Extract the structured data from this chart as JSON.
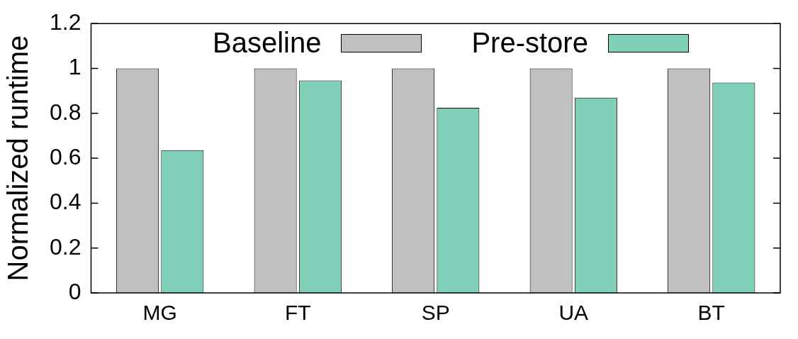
{
  "chart_data": {
    "type": "bar",
    "ylabel": "Normalized runtime",
    "categories": [
      "MG",
      "FT",
      "SP",
      "UA",
      "BT"
    ],
    "series": [
      {
        "name": "Baseline",
        "color": "#c0c0c0",
        "values": [
          1,
          1,
          1,
          1,
          1
        ]
      },
      {
        "name": "Pre-store",
        "color": "#80cfb8",
        "values": [
          0.636,
          0.946,
          0.825,
          0.87,
          0.937
        ]
      }
    ],
    "ylim": [
      0,
      1.2
    ],
    "yticks": [
      0,
      0.2,
      0.4,
      0.6,
      0.8,
      1,
      1.2
    ],
    "grid": false,
    "legend": "top"
  }
}
